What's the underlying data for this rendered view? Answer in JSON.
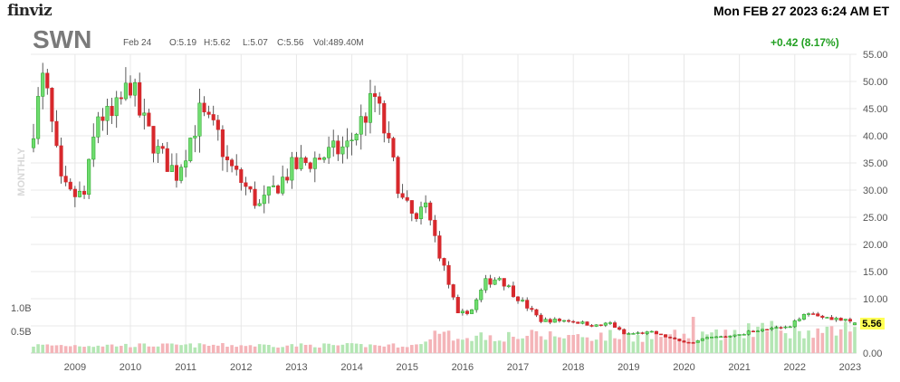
{
  "header": {
    "logo": "finviz",
    "datetime": "Mon FEB 27 2023 6:24 AM ET",
    "ticker": "SWN",
    "date": "Feb 24",
    "open": "O:5.19",
    "high": "H:5.62",
    "low": "L:5.07",
    "close": "C:5.56",
    "volume": "Vol:489.40M",
    "change": "+0.42 (8.17%)"
  },
  "colors": {
    "up": "#22a022",
    "down": "#d0282c",
    "up_fill": "#6fdc6f",
    "down_fill": "#d8282c",
    "vol_up": "#b4e6b4",
    "vol_down": "#f4b4b8",
    "last_bg": "#ffff55"
  },
  "chart_data": {
    "type": "candlestick",
    "period_label": "MONTHLY",
    "ylim": [
      0,
      55
    ],
    "y_ticks": [
      "0.00",
      "5.00",
      "10.00",
      "15.00",
      "20.00",
      "25.00",
      "30.00",
      "35.00",
      "40.00",
      "45.00",
      "50.00",
      "55.00"
    ],
    "volume_ticks": [
      "0.5B",
      "1.0B"
    ],
    "x_tick_labels": [
      "2009",
      "2010",
      "2011",
      "2012",
      "2013",
      "2014",
      "2015",
      "2016",
      "2017",
      "2018",
      "2019",
      "2020",
      "2021",
      "2022",
      "2023"
    ],
    "last_price": "5.56",
    "grid": true,
    "key_points": [
      {
        "date": "2008-04",
        "close": 42
      },
      {
        "date": "2008-06",
        "close": 50
      },
      {
        "date": "2008-07",
        "close": 47
      },
      {
        "date": "2008-10",
        "close": 31
      },
      {
        "date": "2008-12",
        "close": 29
      },
      {
        "date": "2009-03",
        "close": 29
      },
      {
        "date": "2009-06",
        "close": 44
      },
      {
        "date": "2009-09",
        "close": 43
      },
      {
        "date": "2009-12",
        "close": 48
      },
      {
        "date": "2010-01",
        "close": 50
      },
      {
        "date": "2010-03",
        "close": 44
      },
      {
        "date": "2010-07",
        "close": 37
      },
      {
        "date": "2010-11",
        "close": 33
      },
      {
        "date": "2011-04",
        "close": 44
      },
      {
        "date": "2011-08",
        "close": 40
      },
      {
        "date": "2011-10",
        "close": 35
      },
      {
        "date": "2012-05",
        "close": 27
      },
      {
        "date": "2012-12",
        "close": 34
      },
      {
        "date": "2013-06",
        "close": 36
      },
      {
        "date": "2013-12",
        "close": 38
      },
      {
        "date": "2014-06",
        "close": 47
      },
      {
        "date": "2014-08",
        "close": 41
      },
      {
        "date": "2014-12",
        "close": 28
      },
      {
        "date": "2015-03",
        "close": 24
      },
      {
        "date": "2015-05",
        "close": 27
      },
      {
        "date": "2015-12",
        "close": 7
      },
      {
        "date": "2016-03",
        "close": 8
      },
      {
        "date": "2016-06",
        "close": 13
      },
      {
        "date": "2016-09",
        "close": 14
      },
      {
        "date": "2016-12",
        "close": 11
      },
      {
        "date": "2017-06",
        "close": 6
      },
      {
        "date": "2017-12",
        "close": 6
      },
      {
        "date": "2018-06",
        "close": 5
      },
      {
        "date": "2018-09",
        "close": 5.5
      },
      {
        "date": "2018-12",
        "close": 3.5
      },
      {
        "date": "2019-06",
        "close": 3.8
      },
      {
        "date": "2019-12",
        "close": 2.2
      },
      {
        "date": "2020-03",
        "close": 1.9
      },
      {
        "date": "2020-06",
        "close": 2.8
      },
      {
        "date": "2020-12",
        "close": 3.2
      },
      {
        "date": "2021-06",
        "close": 4.5
      },
      {
        "date": "2021-12",
        "close": 4.7
      },
      {
        "date": "2022-03",
        "close": 7.5
      },
      {
        "date": "2022-06",
        "close": 7
      },
      {
        "date": "2022-09",
        "close": 6.5
      },
      {
        "date": "2022-12",
        "close": 5.9
      },
      {
        "date": "2023-02",
        "close": 5.56
      }
    ]
  }
}
